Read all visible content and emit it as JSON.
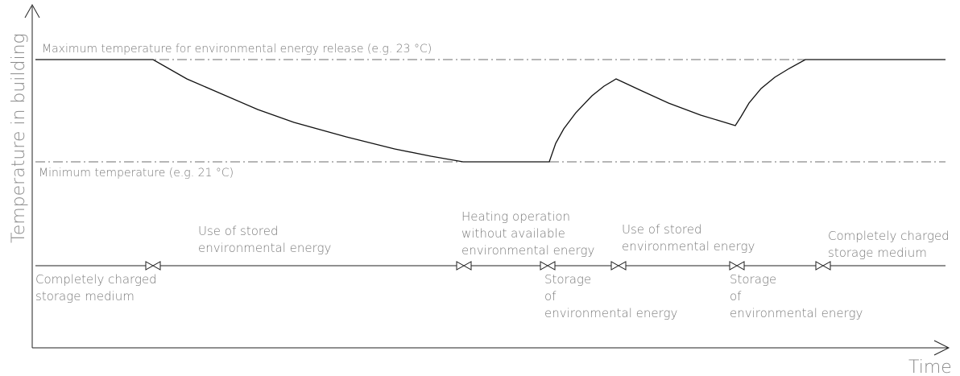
{
  "axes": {
    "y_label": "Temperature in building",
    "x_label": "Time"
  },
  "reference_lines": {
    "max_label": "Maximum temperature for environmental energy release (e.g. 23 °C)",
    "min_label": "Minimum temperature (e.g. 21 °C)"
  },
  "phases": {
    "completely_charged_1": [
      "Completely charged",
      "storage medium"
    ],
    "use_stored_1": [
      "Use of stored",
      "environmental energy"
    ],
    "heating_without": [
      "Heating operation",
      "without available",
      "environmental energy"
    ],
    "storage_1": [
      "Storage",
      "of",
      "environmental energy"
    ],
    "use_stored_2": [
      "Use of stored",
      "environmental energy"
    ],
    "storage_2": [
      "Storage",
      "of",
      "environmental energy"
    ],
    "completely_charged_2": [
      "Completely charged",
      "storage medium"
    ]
  },
  "colors": {
    "curve": "#111111",
    "reference_line": "#6e6e6e",
    "label": "#7a7a7a"
  }
}
